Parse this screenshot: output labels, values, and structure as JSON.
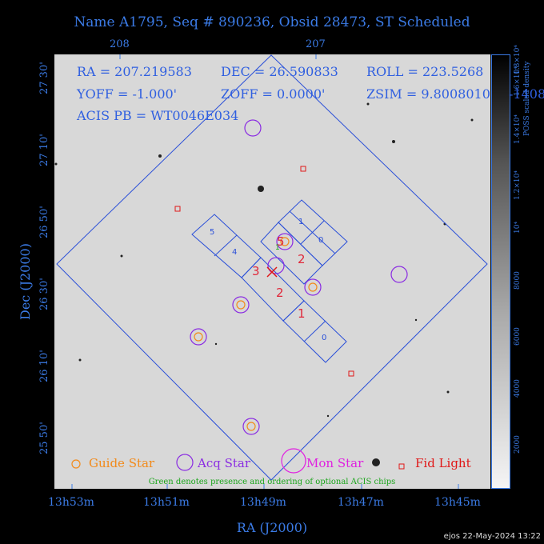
{
  "title": "Name A1795, Seq # 890236, Obsid 28473, ST Scheduled",
  "top_ticks": [
    "208",
    "207"
  ],
  "ra_ticks": [
    "13h53m",
    "13h51m",
    "13h49m",
    "13h47m",
    "13h45m"
  ],
  "dec_ticks": [
    "27 30'",
    "27 10'",
    "26 50'",
    "26 30'",
    "26 10'",
    "25 50'"
  ],
  "xlabel": "RA (J2000)",
  "ylabel": "Dec (J2000)",
  "info": {
    "ra": "RA = 207.219583",
    "dec": "DEC = 26.590833",
    "roll": "ROLL = 223.5268",
    "yoff": "YOFF =  -1.000'",
    "zoff": "ZOFF =  0.0000'",
    "zsim": "ZSIM = 9.8008010",
    "acis": "ACIS PB = WT0046E034",
    "overflow": "-1408"
  },
  "chip_labels": {
    "n0": "0",
    "n1": "1",
    "n2": "2",
    "n3": "3",
    "n4": "4",
    "n5": "5",
    "r0": "0",
    "r1": "1",
    "r2": "2",
    "r3": "3",
    "r5": "5"
  },
  "legend": {
    "guide": "Guide Star",
    "acq": "Acq Star",
    "mon": "Mon Star",
    "fid": "Fid Light"
  },
  "note": "Green denotes presence and ordering of optional ACIS chips",
  "colorbar": {
    "ticks": [
      "2000",
      "4000",
      "6000",
      "8000",
      "10⁴",
      "1.2×10⁴",
      "1.4×10⁴",
      "1.6×10⁴",
      "1.8×10⁴"
    ],
    "label": "POSS scaled density"
  },
  "stamp": "ejos 22-May-2024 13:22",
  "colors": {
    "axis": "#3b7be6",
    "guide": "#f28a1a",
    "acq": "#8a2be2",
    "mon": "#e020e0",
    "fid": "#e01818",
    "optional": "#1aa51a"
  }
}
